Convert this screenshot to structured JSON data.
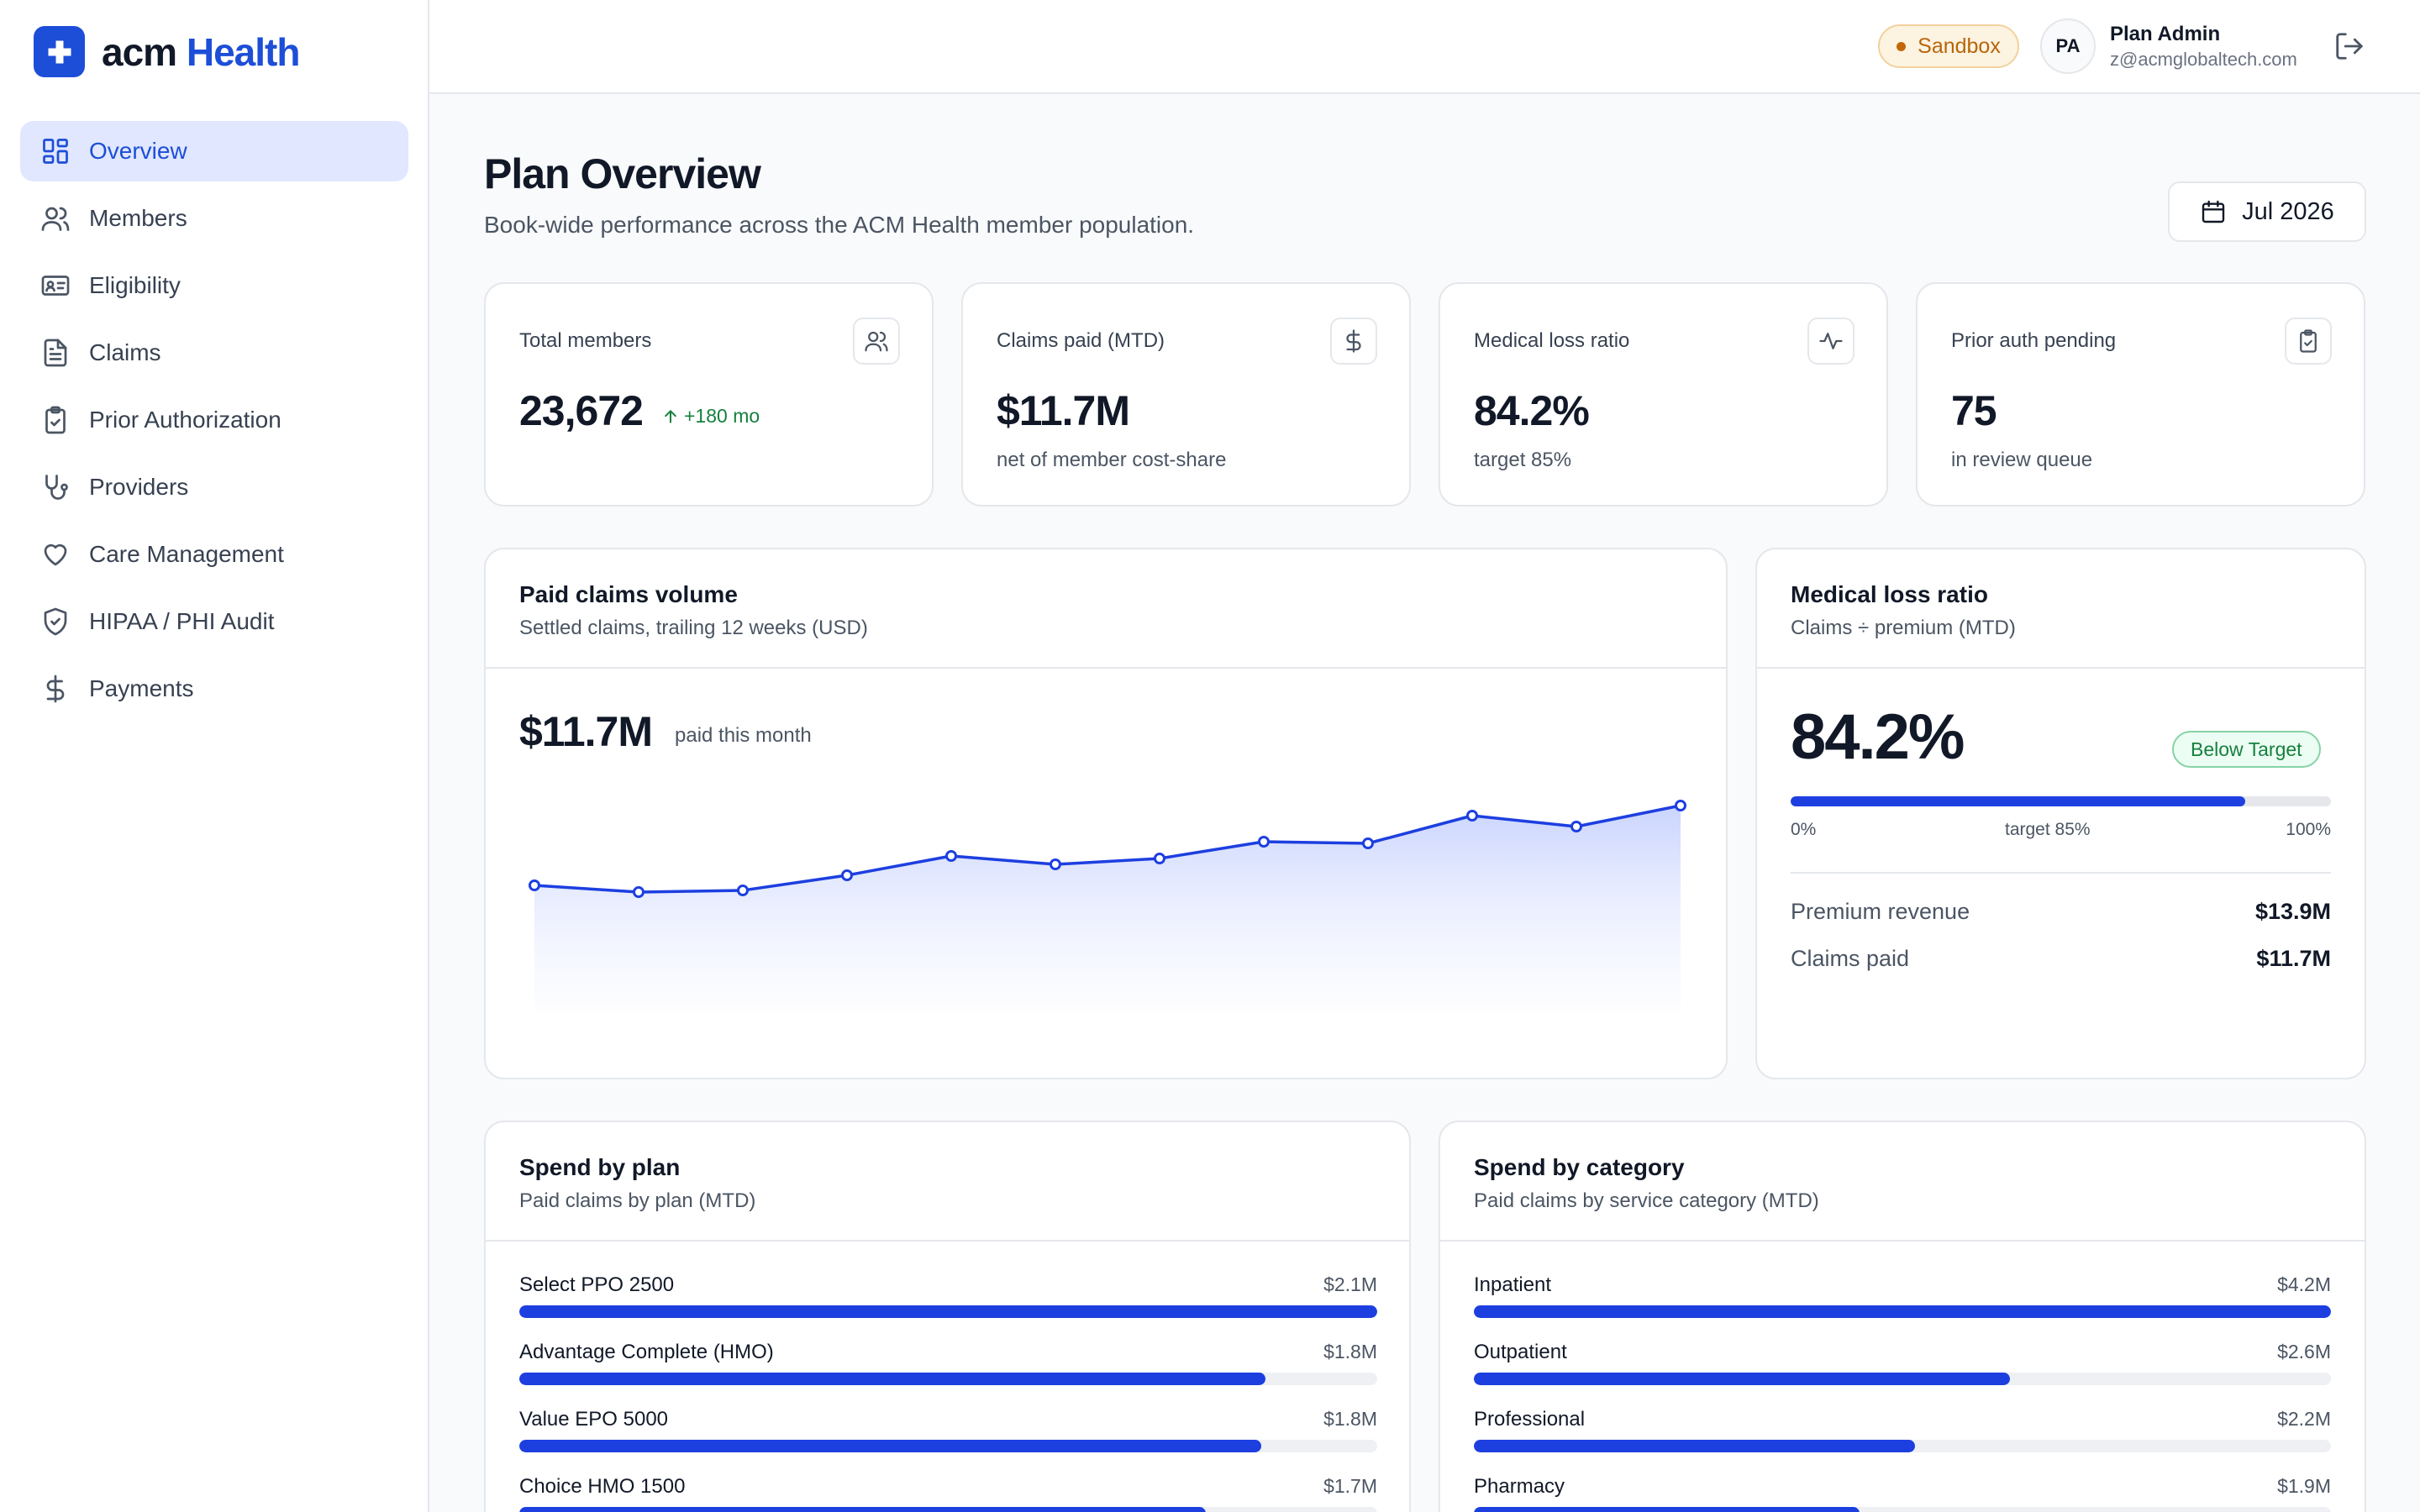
{
  "brand": {
    "name_part1": "acm",
    "name_part2": "Health"
  },
  "sidebar": {
    "items": [
      {
        "label": "Overview",
        "icon": "dashboard-icon",
        "active": true
      },
      {
        "label": "Members",
        "icon": "users-icon"
      },
      {
        "label": "Eligibility",
        "icon": "id-card-icon"
      },
      {
        "label": "Claims",
        "icon": "file-text-icon"
      },
      {
        "label": "Prior Authorization",
        "icon": "clipboard-check-icon"
      },
      {
        "label": "Providers",
        "icon": "stethoscope-icon"
      },
      {
        "label": "Care Management",
        "icon": "heart-icon"
      },
      {
        "label": "HIPAA / PHI Audit",
        "icon": "shield-check-icon"
      },
      {
        "label": "Payments",
        "icon": "dollar-icon"
      }
    ]
  },
  "header": {
    "environment_badge": "Sandbox",
    "user": {
      "initials": "PA",
      "name": "Plan Admin",
      "email": "z@acmglobaltech.com"
    }
  },
  "page": {
    "title": "Plan Overview",
    "subtitle": "Book-wide performance across the ACM Health member population.",
    "period": "Jul 2026"
  },
  "kpis": [
    {
      "label": "Total members",
      "value": "23,672",
      "delta": "+180 mo",
      "icon": "users-icon"
    },
    {
      "label": "Claims paid (MTD)",
      "value": "$11.7M",
      "sub": "net of member cost-share",
      "icon": "dollar-icon"
    },
    {
      "label": "Medical loss ratio",
      "value": "84.2%",
      "sub": "target 85%",
      "icon": "activity-icon"
    },
    {
      "label": "Prior auth pending",
      "value": "75",
      "sub": "in review queue",
      "icon": "clipboard-check-icon"
    }
  ],
  "paid_claims": {
    "title": "Paid claims volume",
    "subtitle": "Settled claims, trailing 12 weeks (USD)",
    "headline": "$11.7M",
    "headline_caption": "paid this month"
  },
  "chart_data": {
    "type": "area",
    "x": [
      1,
      2,
      3,
      4,
      5,
      6,
      7,
      8,
      9,
      10,
      11,
      12
    ],
    "series": [
      {
        "values": [
          2.6,
          2.52,
          2.54,
          2.72,
          2.95,
          2.85,
          2.92,
          3.12,
          3.1,
          3.43,
          3.3,
          3.55
        ]
      }
    ],
    "ylim": [
      0,
      4
    ],
    "grid": false,
    "color": "#1d3fe0"
  },
  "mlr": {
    "title": "Medical loss ratio",
    "subtitle": "Claims ÷ premium (MTD)",
    "value": "84.2%",
    "fraction": 0.842,
    "status": "Below Target",
    "scale_min": "0%",
    "scale_target": "target 85%",
    "scale_max": "100%",
    "rows": [
      {
        "label": "Premium revenue",
        "value": "$13.9M"
      },
      {
        "label": "Claims paid",
        "value": "$11.7M"
      }
    ]
  },
  "spend_by_plan": {
    "title": "Spend by plan",
    "subtitle": "Paid claims by plan (MTD)",
    "items": [
      {
        "name": "Select PPO 2500",
        "value": "$2.1M",
        "fraction": 1.0
      },
      {
        "name": "Advantage Complete (HMO)",
        "value": "$1.8M",
        "fraction": 0.87
      },
      {
        "name": "Value EPO 5000",
        "value": "$1.8M",
        "fraction": 0.865
      },
      {
        "name": "Choice HMO 1500",
        "value": "$1.7M",
        "fraction": 0.8
      }
    ]
  },
  "spend_by_category": {
    "title": "Spend by category",
    "subtitle": "Paid claims by service category (MTD)",
    "items": [
      {
        "name": "Inpatient",
        "value": "$4.2M",
        "fraction": 1.0
      },
      {
        "name": "Outpatient",
        "value": "$2.6M",
        "fraction": 0.625
      },
      {
        "name": "Professional",
        "value": "$2.2M",
        "fraction": 0.515
      },
      {
        "name": "Pharmacy",
        "value": "$1.9M",
        "fraction": 0.45
      }
    ]
  },
  "colors": {
    "accent": "#1d4ed8",
    "bar": "#1d3fe0",
    "positive": "#15803d",
    "warning": "#b7650b"
  }
}
